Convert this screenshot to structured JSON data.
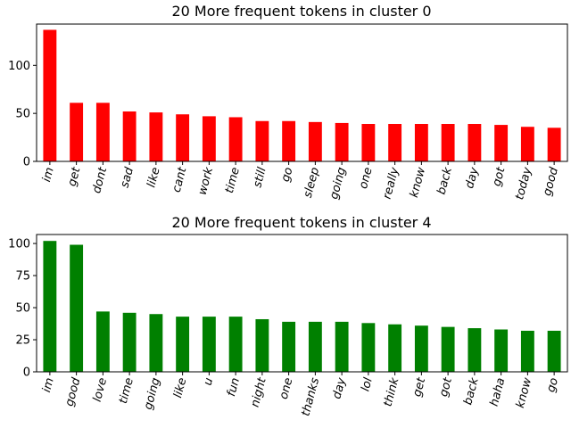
{
  "chart_data": [
    {
      "type": "bar",
      "title": "20 More frequent tokens in cluster 0",
      "xlabel": "",
      "ylabel": "",
      "color": "#ff0000",
      "ylim": [
        0,
        143
      ],
      "yticks": [
        0,
        50,
        100
      ],
      "grid": false,
      "categories": [
        "im",
        "get",
        "dont",
        "sad",
        "like",
        "cant",
        "work",
        "time",
        "still",
        "go",
        "sleep",
        "going",
        "one",
        "really",
        "know",
        "back",
        "day",
        "got",
        "today",
        "good"
      ],
      "values": [
        137,
        61,
        61,
        52,
        51,
        49,
        47,
        46,
        42,
        42,
        41,
        40,
        39,
        39,
        39,
        39,
        39,
        38,
        36,
        35
      ]
    },
    {
      "type": "bar",
      "title": "20 More frequent tokens in cluster 4",
      "xlabel": "",
      "ylabel": "",
      "color": "#008000",
      "ylim": [
        0,
        107
      ],
      "yticks": [
        0,
        25,
        50,
        75,
        100
      ],
      "grid": false,
      "categories": [
        "im",
        "good",
        "love",
        "time",
        "going",
        "like",
        "u",
        "fun",
        "night",
        "one",
        "thanks",
        "day",
        "lol",
        "think",
        "get",
        "got",
        "back",
        "haha",
        "know",
        "go"
      ],
      "values": [
        102,
        99,
        47,
        46,
        45,
        43,
        43,
        43,
        41,
        39,
        39,
        39,
        38,
        37,
        36,
        35,
        34,
        33,
        32,
        32
      ]
    }
  ]
}
